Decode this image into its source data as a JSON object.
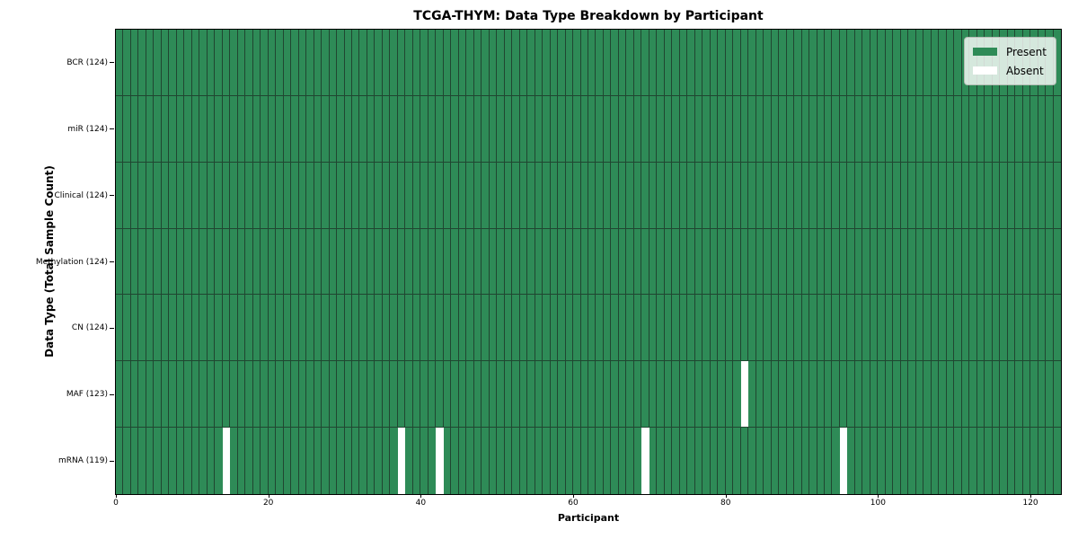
{
  "chart_data": {
    "type": "heatmap",
    "title": "TCGA-THYM: Data Type Breakdown by Participant",
    "xlabel": "Participant",
    "ylabel": "Data Type (Total Sample Count)",
    "n_participants": 124,
    "x_ticks": [
      0,
      20,
      40,
      60,
      80,
      100,
      120
    ],
    "x_range": [
      0,
      124
    ],
    "grid": "cell-edges-only",
    "rows": [
      {
        "label": "BCR (124)",
        "data_type": "BCR",
        "present_count": 124,
        "absent_participants": []
      },
      {
        "label": "miR (124)",
        "data_type": "miR",
        "present_count": 124,
        "absent_participants": []
      },
      {
        "label": "Clinical (124)",
        "data_type": "Clinical",
        "present_count": 124,
        "absent_participants": []
      },
      {
        "label": "Methylation (124)",
        "data_type": "Methylation",
        "present_count": 124,
        "absent_participants": []
      },
      {
        "label": "CN (124)",
        "data_type": "CN",
        "present_count": 124,
        "absent_participants": []
      },
      {
        "label": "MAF (123)",
        "data_type": "MAF",
        "present_count": 123,
        "absent_participants": [
          82
        ]
      },
      {
        "label": "mRNA (119)",
        "data_type": "mRNA",
        "present_count": 119,
        "absent_participants": [
          14,
          37,
          42,
          69,
          95
        ]
      }
    ],
    "legend": {
      "position": "upper right",
      "items": [
        {
          "label": "Present",
          "color": "#2e8b57"
        },
        {
          "label": "Absent",
          "color": "#ffffff"
        }
      ]
    },
    "colors": {
      "present": "#2e8b57",
      "absent": "#ffffff",
      "cell_edge": "#204631",
      "axis": "#000000",
      "background": "#ffffff"
    }
  }
}
